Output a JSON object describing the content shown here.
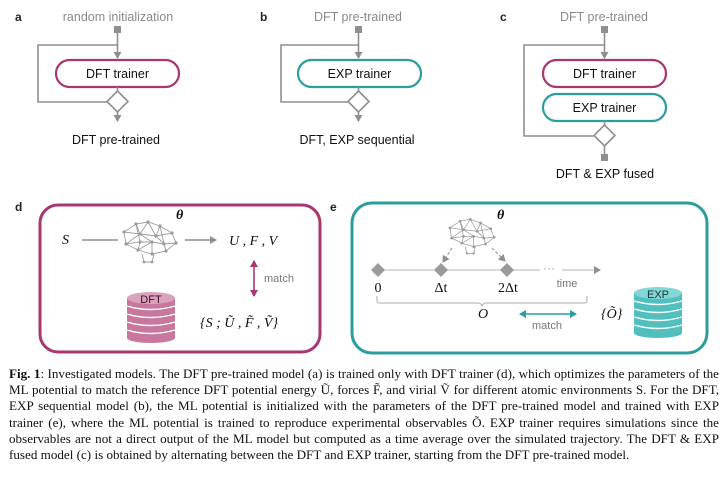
{
  "panels": {
    "a": {
      "letter": "a",
      "input": "random initialization",
      "trainer": "DFT trainer",
      "output": "DFT pre-trained"
    },
    "b": {
      "letter": "b",
      "input": "DFT pre-trained",
      "trainer": "EXP trainer",
      "output": "DFT, EXP sequential"
    },
    "c": {
      "letter": "c",
      "input": "DFT pre-trained",
      "trainer_1": "DFT trainer",
      "trainer_2": "EXP trainer",
      "output": "DFT & EXP fused"
    },
    "d": {
      "letter": "d",
      "input": "S",
      "theta": "θ",
      "predictions": "U , F , V",
      "match": "match",
      "database": "DFT",
      "reference": "{S ; Ũ , F̃ , Ṽ}"
    },
    "e": {
      "letter": "e",
      "theta": "θ",
      "t0": "0",
      "t1": "Δt",
      "t2": "2Δt",
      "dots": "···",
      "time_label": "time",
      "observable": "O",
      "match": "match",
      "reference": "{Õ}",
      "database": "EXP"
    }
  },
  "caption": {
    "label": "Fig. 1",
    "text": ": Investigated models. The DFT pre-trained model (a) is trained only with DFT trainer (d), which optimizes the parameters of the ML potential to match the reference DFT potential energy Ũ, forces F̃, and virial Ṽ for different atomic environments S. For the DFT, EXP sequential model (b), the ML potential is initialized with the parameters of the DFT pre-trained model and trained with EXP trainer (e), where the ML potential is trained to reproduce experimental observables Õ. EXP trainer requires simulations since the observables are not a direct output of the ML model but computed as a time average over the simulated trajectory. The DFT & EXP fused model (c) is obtained by alternating between the DFT and EXP trainer, starting from the DFT pre-trained model."
  },
  "colors": {
    "dft": "#a8366f",
    "exp": "#2a9d9c",
    "dft_db": "#c8789d",
    "exp_db": "#52bfbf",
    "gray": "#8f8f8f",
    "text_gray": "#888888"
  }
}
